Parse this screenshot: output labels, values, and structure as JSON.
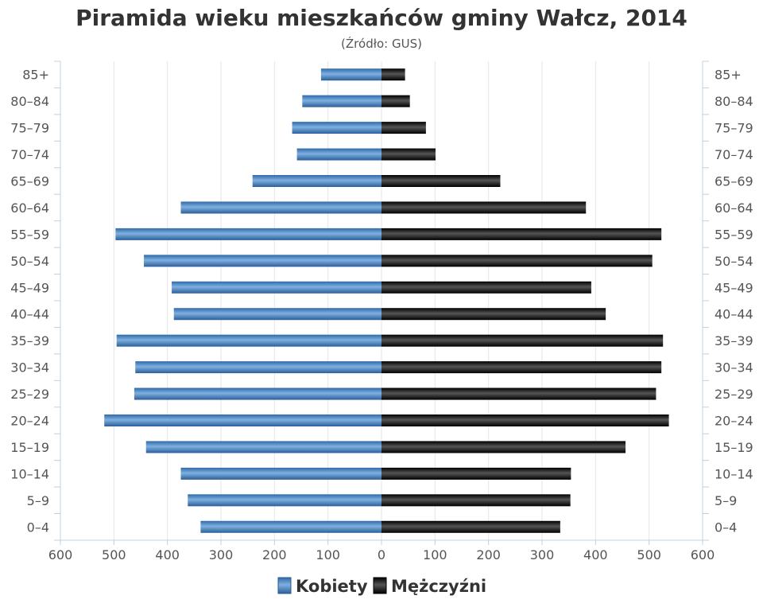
{
  "chart_data": {
    "type": "bar",
    "orientation": "horizontal-pyramid",
    "title": "Piramida wieku mieszkańców gminy Wałcz, 2014",
    "subtitle": "(Źródło: GUS)",
    "categories": [
      "0–4",
      "5–9",
      "10–14",
      "15–19",
      "20–24",
      "25–29",
      "30–34",
      "35–39",
      "40–44",
      "45–49",
      "50–54",
      "55–59",
      "60–64",
      "65–69",
      "70–74",
      "75–79",
      "80–84",
      "85+"
    ],
    "x_tick_labels": [
      "600",
      "500",
      "400",
      "300",
      "200",
      "100",
      "0",
      "100",
      "200",
      "300",
      "400",
      "500",
      "600"
    ],
    "xlim": [
      -600,
      600
    ],
    "grid": true,
    "legend_position": "bottom",
    "series": [
      {
        "name": "Kobiety",
        "color": "#3f7fbf",
        "values": [
          338,
          362,
          375,
          440,
          518,
          462,
          460,
          495,
          388,
          392,
          444,
          497,
          375,
          241,
          158,
          167,
          148,
          113
        ]
      },
      {
        "name": "Mężczyźni",
        "color": "#1a1a1a",
        "values": [
          334,
          353,
          354,
          456,
          537,
          513,
          523,
          526,
          419,
          392,
          506,
          523,
          382,
          222,
          101,
          83,
          53,
          44
        ]
      }
    ]
  }
}
